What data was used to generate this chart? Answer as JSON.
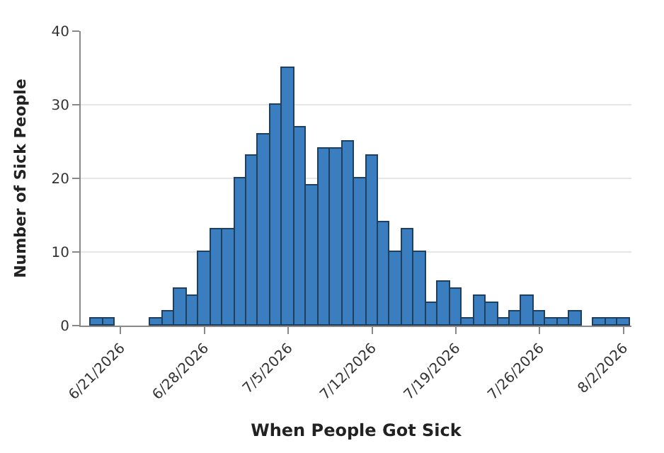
{
  "chart_data": {
    "type": "bar",
    "xlabel": "When People Got Sick",
    "ylabel": "Number of Sick People",
    "x": [
      "2026-06-19",
      "2026-06-20",
      "2026-06-21",
      "2026-06-22",
      "2026-06-23",
      "2026-06-24",
      "2026-06-25",
      "2026-06-26",
      "2026-06-27",
      "2026-06-28",
      "2026-06-29",
      "2026-06-30",
      "2026-07-01",
      "2026-07-02",
      "2026-07-03",
      "2026-07-04",
      "2026-07-05",
      "2026-07-06",
      "2026-07-07",
      "2026-07-08",
      "2026-07-09",
      "2026-07-10",
      "2026-07-11",
      "2026-07-12",
      "2026-07-13",
      "2026-07-14",
      "2026-07-15",
      "2026-07-16",
      "2026-07-17",
      "2026-07-18",
      "2026-07-19",
      "2026-07-20",
      "2026-07-21",
      "2026-07-22",
      "2026-07-23",
      "2026-07-24",
      "2026-07-25",
      "2026-07-26",
      "2026-07-27",
      "2026-07-28",
      "2026-07-29",
      "2026-07-30",
      "2026-07-31",
      "2026-08-01",
      "2026-08-02"
    ],
    "values": [
      1,
      1,
      0,
      0,
      0,
      1,
      2,
      5,
      4,
      10,
      13,
      13,
      20,
      23,
      26,
      30,
      35,
      27,
      19,
      24,
      24,
      25,
      20,
      23,
      14,
      10,
      13,
      10,
      3,
      6,
      5,
      1,
      4,
      3,
      1,
      2,
      4,
      2,
      1,
      1,
      2,
      0,
      1,
      1,
      1
    ],
    "color": "#3a7ebf",
    "xlim": [
      "2026-06-17T16:00",
      "2026-08-02T16:00"
    ],
    "xticks": [
      {
        "value": "2026-06-21",
        "label": "6/21/2026"
      },
      {
        "value": "2026-06-28",
        "label": "6/28/2026"
      },
      {
        "value": "2026-07-05",
        "label": "7/5/2026"
      },
      {
        "value": "2026-07-12",
        "label": "7/12/2026"
      },
      {
        "value": "2026-07-19",
        "label": "7/19/2026"
      },
      {
        "value": "2026-07-26",
        "label": "7/26/2026"
      },
      {
        "value": "2026-08-02",
        "label": "8/2/2026"
      }
    ],
    "ylim": [
      0,
      40
    ],
    "yticks": [
      0,
      10,
      20,
      30,
      40
    ],
    "grid": "y"
  }
}
